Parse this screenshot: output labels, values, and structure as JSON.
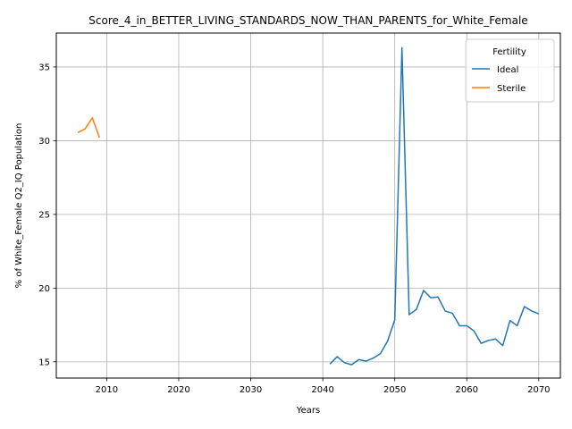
{
  "chart_data": {
    "type": "line",
    "title": "Score_4_in_BETTER_LIVING_STANDARDS_NOW_THAN_PARENTS_for_White_Female",
    "xlabel": "Years",
    "ylabel": "% of White_Female Q2_IQ Population",
    "xlim": [
      2003,
      2073
    ],
    "ylim": [
      13.9,
      37.3
    ],
    "xticks": [
      2010,
      2020,
      2030,
      2040,
      2050,
      2060,
      2070
    ],
    "yticks": [
      15,
      20,
      25,
      30,
      35
    ],
    "grid": true,
    "legend": {
      "title": "Fertility",
      "placement": "top-right"
    },
    "series": [
      {
        "name": "Ideal",
        "color": "#1f77b4",
        "x": [
          2041,
          2042,
          2043,
          2044,
          2045,
          2046,
          2047,
          2048,
          2049,
          2050,
          2051,
          2052,
          2053,
          2054,
          2055,
          2056,
          2057,
          2058,
          2059,
          2060,
          2061,
          2062,
          2063,
          2064,
          2065,
          2066,
          2067,
          2068,
          2069,
          2070
        ],
        "y": [
          14.85,
          15.35,
          14.95,
          14.8,
          15.15,
          15.05,
          15.25,
          15.55,
          16.4,
          17.85,
          36.3,
          18.2,
          18.55,
          19.85,
          19.35,
          19.4,
          18.45,
          18.3,
          17.45,
          17.45,
          17.1,
          16.25,
          16.45,
          16.55,
          16.1,
          17.8,
          17.45,
          18.75,
          18.45,
          18.25
        ]
      },
      {
        "name": "Sterile",
        "color": "#ff7f0e",
        "x": [
          2006,
          2007,
          2008,
          2009
        ],
        "y": [
          30.55,
          30.8,
          31.55,
          30.2
        ]
      }
    ]
  }
}
